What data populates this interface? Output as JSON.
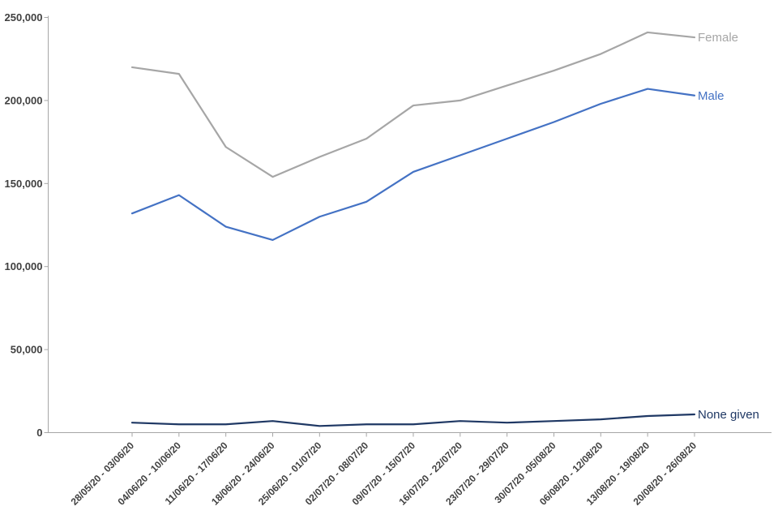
{
  "chart_data": {
    "type": "line",
    "categories": [
      "28/05/20 - 03/06/20",
      "04/06/20 - 10/06/20",
      "11/06/20 - 17/06/20",
      "18/06/20 - 24/06/20",
      "25/06/20 - 01/07/20",
      "02/07/20 - 08/07/20",
      "09/07/20 - 15/07/20",
      "16/07/20 - 22/07/20",
      "23/07/20 - 29/07/20",
      "30/07/20 -05/08/20",
      "06/08/20 - 12/08/20",
      "13/08/20 - 19/08/20",
      "20/08/20 - 26/08/20"
    ],
    "series": [
      {
        "name": "Female",
        "color": "#A6A6A6",
        "values": [
          220000,
          216000,
          172000,
          154000,
          166000,
          177000,
          197000,
          200000,
          209000,
          218000,
          228000,
          241000,
          238000
        ]
      },
      {
        "name": "Male",
        "color": "#4472C4",
        "values": [
          132000,
          143000,
          124000,
          116000,
          130000,
          139000,
          157000,
          167000,
          177000,
          187000,
          198000,
          207000,
          203000
        ]
      },
      {
        "name": "None given",
        "color": "#1F3864",
        "values": [
          6000,
          5000,
          5000,
          7000,
          4000,
          5000,
          5000,
          7000,
          6000,
          7000,
          8000,
          10000,
          11000
        ]
      }
    ],
    "ylim": [
      0,
      250000
    ],
    "ytick_step": 50000,
    "ytick_labels": [
      "0",
      "50,000",
      "100,000",
      "150,000",
      "200,000",
      "250,000"
    ],
    "grid": false,
    "legend_position": "right-of-line-end",
    "x_label_rotation_degrees": -45
  },
  "theme": {
    "background": "#FFFFFF",
    "axis_color": "#A6A6A6",
    "tick_text_color": "#404040"
  }
}
